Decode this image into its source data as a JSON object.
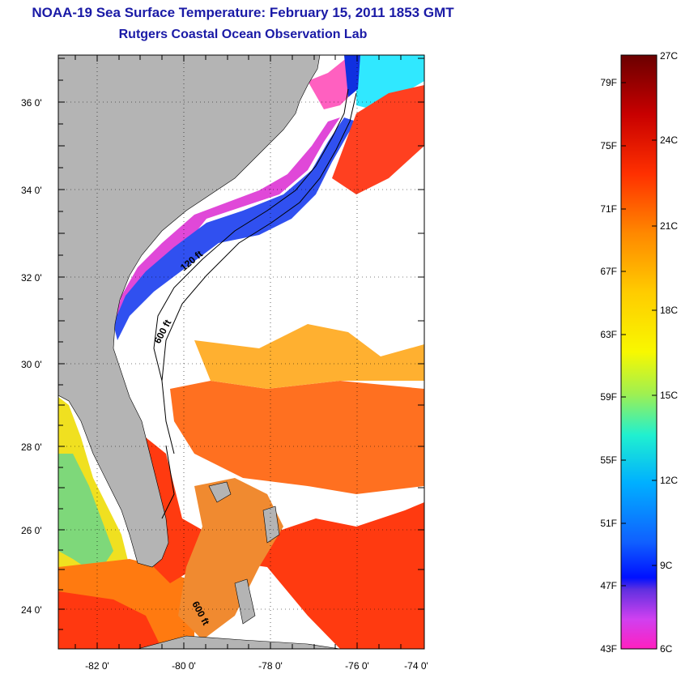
{
  "header": {
    "title": "NOAA-19 Sea Surface Temperature:  February 15, 2011 1853 GMT",
    "subtitle": "Rutgers Coastal Ocean Observation Lab"
  },
  "map": {
    "lat_labels": [
      "36 0'",
      "34 0'",
      "32 0'",
      "30 0'",
      "28 0'",
      "26 0'",
      "24 0'"
    ],
    "lon_labels": [
      "-82 0'",
      "-80 0'",
      "-78 0'",
      "-76 0'",
      "-74 0'"
    ],
    "contour_labels": [
      "120 ft",
      "600 ft",
      "600 ft"
    ],
    "colors": {
      "land": "#b4b4b4",
      "cloud": "#ffffff"
    }
  },
  "colorbar": {
    "fahrenheit": [
      "79F",
      "75F",
      "71F",
      "67F",
      "63F",
      "59F",
      "55F",
      "51F",
      "47F",
      "43F"
    ],
    "celsius": [
      "27C",
      "24C",
      "21C",
      "18C",
      "15C",
      "12C",
      "9C",
      "6C"
    ],
    "gradient": [
      "#6b0000",
      "#c80000",
      "#ff3000",
      "#ff8800",
      "#ffcc00",
      "#f8f800",
      "#a0f050",
      "#20f0d0",
      "#00b0ff",
      "#1060ff",
      "#0010ff",
      "#8040e0",
      "#e040f0",
      "#ff20c0"
    ]
  }
}
